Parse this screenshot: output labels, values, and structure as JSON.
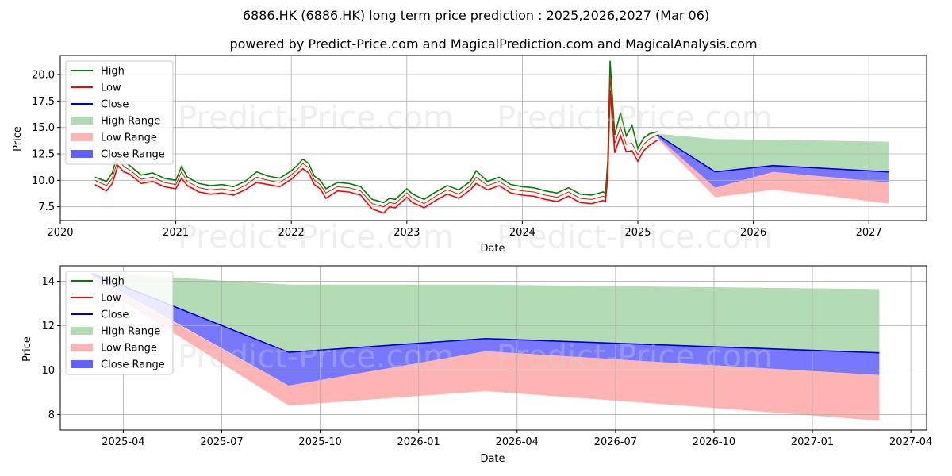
{
  "title": "6886.HK (6886.HK) long term price prediction : 2025,2026,2027 (Mar 06)",
  "subtitle": "powered by Predict-Price.com and MagicalPrediction.com and MagicalAnalysis.com",
  "watermark": "Predict-Price.com",
  "colors": {
    "high": "#008000",
    "low": "#ff0000",
    "close": "#0000cc",
    "high_range": "#b4dcb4",
    "low_range": "#ffb4b4",
    "close_range": "#6060ff"
  },
  "legend": [
    "High",
    "Low",
    "Close",
    "High Range",
    "Low Range",
    "Close Range"
  ],
  "chart_data": [
    {
      "type": "line",
      "name": "top",
      "xlabel": "Date",
      "ylabel": "Price",
      "xlim": [
        2020.0,
        2027.5
      ],
      "ylim": [
        6.2,
        21.8
      ],
      "xticks": [
        2020,
        2021,
        2022,
        2023,
        2024,
        2025,
        2026,
        2027
      ],
      "xtick_labels": [
        "2020",
        "2021",
        "2022",
        "2023",
        "2024",
        "2025",
        "2026",
        "2027"
      ],
      "yticks": [
        7.5,
        10.0,
        12.5,
        15.0,
        17.5,
        20.0
      ],
      "ytick_labels": [
        "7.5",
        "10.0",
        "12.5",
        "15.0",
        "17.5",
        "20.0"
      ],
      "history": {
        "x": [
          2020.3,
          2020.4,
          2020.45,
          2020.5,
          2020.55,
          2020.6,
          2020.7,
          2020.8,
          2020.9,
          2021.0,
          2021.05,
          2021.1,
          2021.2,
          2021.3,
          2021.4,
          2021.5,
          2021.6,
          2021.7,
          2021.8,
          2021.9,
          2022.0,
          2022.05,
          2022.1,
          2022.15,
          2022.2,
          2022.25,
          2022.3,
          2022.4,
          2022.5,
          2022.6,
          2022.7,
          2022.8,
          2022.85,
          2022.9,
          2023.0,
          2023.05,
          2023.15,
          2023.25,
          2023.35,
          2023.45,
          2023.55,
          2023.6,
          2023.7,
          2023.8,
          2023.9,
          2024.0,
          2024.1,
          2024.2,
          2024.3,
          2024.4,
          2024.5,
          2024.6,
          2024.7,
          2024.72,
          2024.74,
          2024.76,
          2024.8,
          2024.85,
          2024.9,
          2024.95,
          2025.0,
          2025.05,
          2025.1,
          2025.17
        ],
        "close": [
          10.0,
          9.5,
          10.2,
          12.0,
          11.3,
          11.0,
          10.1,
          10.3,
          9.8,
          9.6,
          10.8,
          9.9,
          9.3,
          9.1,
          9.2,
          9.0,
          9.5,
          10.3,
          10.0,
          9.8,
          10.5,
          11.0,
          11.6,
          11.2,
          10.0,
          9.6,
          8.8,
          9.4,
          9.3,
          9.0,
          7.8,
          7.5,
          7.9,
          7.8,
          8.8,
          8.3,
          7.8,
          8.5,
          9.1,
          8.7,
          9.5,
          10.3,
          9.5,
          9.9,
          9.2,
          9.0,
          8.9,
          8.6,
          8.4,
          8.9,
          8.3,
          8.2,
          8.5,
          8.4,
          11.0,
          19.8,
          13.5,
          15.0,
          13.4,
          13.5,
          12.4,
          13.4,
          13.9,
          14.3
        ],
        "high": [
          10.3,
          9.9,
          10.7,
          12.6,
          11.8,
          11.4,
          10.5,
          10.7,
          10.2,
          10.0,
          11.3,
          10.3,
          9.7,
          9.5,
          9.6,
          9.4,
          9.9,
          10.8,
          10.4,
          10.2,
          10.9,
          11.4,
          12.0,
          11.6,
          10.4,
          10.0,
          9.2,
          9.8,
          9.7,
          9.4,
          8.2,
          7.9,
          8.3,
          8.2,
          9.2,
          8.7,
          8.2,
          8.9,
          9.5,
          9.1,
          9.9,
          10.9,
          9.9,
          10.3,
          9.6,
          9.4,
          9.3,
          9.0,
          8.8,
          9.3,
          8.7,
          8.6,
          8.9,
          8.8,
          11.8,
          21.3,
          14.3,
          16.4,
          14.2,
          15.2,
          13.0,
          14.0,
          14.4,
          14.6
        ],
        "low": [
          9.6,
          9.0,
          9.7,
          11.4,
          10.8,
          10.6,
          9.7,
          9.9,
          9.4,
          9.2,
          10.2,
          9.5,
          8.9,
          8.7,
          8.8,
          8.6,
          9.1,
          9.8,
          9.6,
          9.4,
          10.1,
          10.6,
          11.1,
          10.7,
          9.6,
          9.2,
          8.3,
          9.0,
          8.9,
          8.6,
          7.3,
          6.9,
          7.5,
          7.4,
          8.4,
          7.9,
          7.4,
          8.1,
          8.7,
          8.3,
          9.1,
          9.7,
          9.1,
          9.5,
          8.8,
          8.6,
          8.5,
          8.2,
          8.0,
          8.5,
          7.9,
          7.8,
          8.1,
          8.0,
          10.4,
          18.5,
          12.6,
          14.2,
          12.7,
          12.8,
          11.8,
          12.8,
          13.3,
          13.8
        ]
      },
      "forecast": {
        "x": [
          2025.17,
          2025.67,
          2026.17,
          2026.67,
          2027.17
        ],
        "close": [
          14.3,
          10.8,
          11.4,
          11.1,
          10.8
        ],
        "high_range_top": [
          14.4,
          13.9,
          13.85,
          13.75,
          13.65
        ],
        "high_range_bottom": [
          14.2,
          10.8,
          11.4,
          11.1,
          10.8
        ],
        "low_range_top": [
          14.1,
          9.3,
          10.8,
          10.3,
          9.8
        ],
        "low_range_bottom": [
          13.9,
          8.4,
          9.1,
          8.5,
          7.8
        ],
        "close_range_top": [
          14.3,
          10.8,
          11.4,
          11.1,
          10.8
        ],
        "close_range_bottom": [
          14.1,
          9.3,
          10.8,
          10.3,
          9.8
        ]
      }
    },
    {
      "type": "area",
      "name": "bottom",
      "xlabel": "Date",
      "ylabel": "Price",
      "xlim": [
        2025.09,
        2027.29
      ],
      "ylim": [
        7.3,
        14.7
      ],
      "xticks": [
        2025.25,
        2025.5,
        2025.75,
        2026.0,
        2026.25,
        2026.5,
        2026.75,
        2027.0,
        2027.25
      ],
      "xtick_labels": [
        "2025-04",
        "2025-07",
        "2025-10",
        "2026-01",
        "2026-04",
        "2026-07",
        "2026-10",
        "2027-01",
        "2027-04"
      ],
      "yticks": [
        8,
        10,
        12,
        14
      ],
      "ytick_labels": [
        "8",
        "10",
        "12",
        "14"
      ],
      "forecast": {
        "x": [
          2025.17,
          2025.67,
          2026.17,
          2026.67,
          2027.17
        ],
        "close": [
          14.35,
          10.8,
          11.42,
          11.1,
          10.78
        ],
        "high_range_top": [
          14.4,
          13.85,
          13.85,
          13.75,
          13.65
        ],
        "high_range_bottom": [
          14.3,
          10.8,
          11.42,
          11.1,
          10.78
        ],
        "low_range_top": [
          14.2,
          9.3,
          10.85,
          10.3,
          9.78
        ],
        "low_range_bottom": [
          14.0,
          8.4,
          9.05,
          8.4,
          7.72
        ],
        "close_range_top": [
          14.35,
          10.8,
          11.42,
          11.1,
          10.78
        ],
        "close_range_bottom": [
          14.25,
          9.3,
          10.85,
          10.3,
          9.78
        ]
      }
    }
  ]
}
